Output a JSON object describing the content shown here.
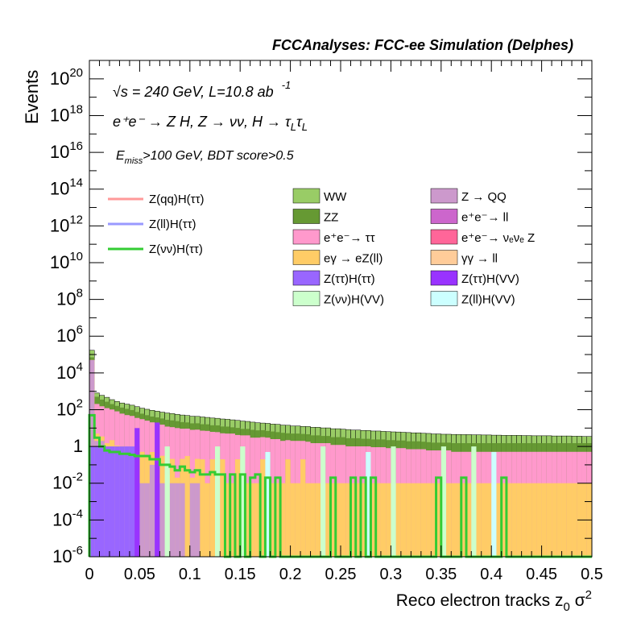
{
  "header": {
    "title": "FCCAnalyses: FCC-ee Simulation (Delphes)"
  },
  "chart_data": {
    "type": "bar",
    "stacked": true,
    "log_y": true,
    "xlabel": "Reco electron tracks z",
    "xlabel_sub": "0",
    "xlabel_tail": " σ",
    "xlabel_sup": "2",
    "ylabel": "Events",
    "xlim": [
      0,
      0.5
    ],
    "ylim": [
      1e-06,
      1e+21
    ],
    "x_ticks": [
      "0",
      "0.05",
      "0.1",
      "0.15",
      "0.2",
      "0.25",
      "0.3",
      "0.35",
      "0.4",
      "0.45",
      "0.5"
    ],
    "y_ticks": [
      {
        "base": "10",
        "exp": "20"
      },
      {
        "base": "10",
        "exp": "18"
      },
      {
        "base": "10",
        "exp": "16"
      },
      {
        "base": "10",
        "exp": "14"
      },
      {
        "base": "10",
        "exp": "12"
      },
      {
        "base": "10",
        "exp": "10"
      },
      {
        "base": "10",
        "exp": "8"
      },
      {
        "base": "10",
        "exp": "6"
      },
      {
        "base": "10",
        "exp": "4"
      },
      {
        "base": "10",
        "exp": "2"
      },
      {
        "base": "1",
        "exp": ""
      },
      {
        "base": "10",
        "exp": "-2"
      },
      {
        "base": "10",
        "exp": "-4"
      },
      {
        "base": "10",
        "exp": "-6"
      }
    ],
    "annotations": {
      "sqrt_s": "√s = 240 GeV, L=10.8 ab",
      "sqrt_s_sup": "-1",
      "process": "e⁺e⁻ → Z H, Z → νν, H → τ",
      "process_sub1": "L",
      "process_mid": "τ",
      "process_sub2": "L",
      "selection_main": "E",
      "selection_sub": "miss",
      "selection_tail": ">100 GeV, BDT score>0.5"
    },
    "legend_lines": [
      {
        "name": "Z(qq)H(ττ)",
        "color": "#ff9999"
      },
      {
        "name": "Z(ll)H(ττ)",
        "color": "#9999ff"
      },
      {
        "name": "Z(νν)H(ττ)",
        "color": "#33cc33"
      }
    ],
    "legend_boxes": [
      {
        "name": "WW",
        "color": "#99cc66"
      },
      {
        "name": "Z → QQ",
        "color": "#cc99cc"
      },
      {
        "name": "ZZ",
        "color": "#669933"
      },
      {
        "name": "e⁺e⁻→ ll",
        "color": "#cc66cc"
      },
      {
        "name": "e⁺e⁻→ ττ",
        "color": "#ff99cc"
      },
      {
        "name": "e⁺e⁻→ νₑνₑ Z",
        "color": "#ff6699"
      },
      {
        "name": "eγ → eZ(ll)",
        "color": "#ffcc66"
      },
      {
        "name": "γγ → ll",
        "color": "#ffcc99"
      },
      {
        "name": "Z(ττ)H(ττ)",
        "color": "#9966ff"
      },
      {
        "name": "Z(ττ)H(VV)",
        "color": "#9933ff"
      },
      {
        "name": "Z(νν)H(VV)",
        "color": "#ccffcc"
      },
      {
        "name": "Z(ll)H(VV)",
        "color": "#ccffff"
      }
    ],
    "bin_width": 0.005,
    "stack_order": [
      "Z → QQ",
      "eγ → eZ(ll)",
      "e⁺e⁻→ ττ",
      "ZZ",
      "WW"
    ],
    "stack": [
      {
        "name": "Z → QQ",
        "color": "#cc99cc",
        "values": [
          50000,
          2,
          2,
          0.5,
          1,
          0.3,
          0.02,
          0.3,
          0.01,
          0.2,
          0.01,
          0.01,
          0.1,
          0.01,
          0.01,
          0.01,
          0.01,
          0.01,
          0.01,
          0,
          0.01,
          0.01,
          0,
          0,
          0,
          0,
          0,
          0,
          0,
          0,
          0,
          0,
          0,
          0,
          0,
          0,
          0,
          0,
          0,
          0,
          0,
          0,
          0,
          0,
          0,
          0,
          0,
          0,
          0,
          0,
          0,
          0,
          0,
          0,
          0,
          0,
          0,
          0,
          0,
          0,
          0,
          0,
          0,
          0,
          0,
          0,
          0,
          0,
          0,
          0,
          0,
          0,
          0,
          0,
          0,
          0,
          0,
          0,
          0,
          0,
          0,
          0,
          0,
          0,
          0,
          0,
          0,
          0,
          0,
          0,
          0,
          0,
          0,
          0,
          0,
          0,
          0,
          0,
          0,
          0
        ]
      },
      {
        "name": "eγ → eZ(ll)",
        "color": "#ffcc66",
        "values": [
          2,
          3,
          1.5,
          1,
          1.2,
          0.8,
          1,
          0.5,
          0.6,
          0.4,
          0.5,
          0.3,
          0.4,
          0.01,
          0.3,
          0.02,
          0.2,
          0.01,
          0.2,
          0.3,
          0.01,
          0.2,
          0.2,
          0.01,
          0.2,
          0.01,
          0.2,
          0.01,
          0.01,
          0.2,
          0.01,
          0.01,
          0.01,
          0.01,
          0.2,
          0.01,
          0.01,
          0.01,
          0.01,
          0.2,
          0.01,
          0.01,
          0.2,
          0.01,
          0.01,
          0.01,
          0.01,
          0.01,
          0.01,
          0.01,
          0.01,
          0.01,
          0.01,
          0.01,
          0.01,
          0.01,
          0.01,
          0.01,
          0.01,
          0.01,
          0.01,
          0.01,
          0.01,
          0.01,
          0.01,
          0.01,
          0.01,
          0.01,
          0.01,
          0.01,
          0.01,
          0.01,
          0.01,
          0.01,
          0.01,
          0.01,
          0.01,
          0.01,
          0.01,
          0.01,
          0.01,
          0.01,
          0.01,
          0.01,
          0.01,
          0.01,
          0.01,
          0.01,
          0.01,
          0.01,
          0.01,
          0.01,
          0.01,
          0.01,
          0.01,
          0.01,
          0.01,
          0.01,
          0.01,
          0.01
        ]
      },
      {
        "name": "e⁺e⁻→ ττ",
        "color": "#ff99cc",
        "values": [
          300,
          200,
          150,
          120,
          100,
          80,
          60,
          50,
          45,
          35,
          30,
          25,
          20,
          18,
          15,
          12,
          11,
          10,
          9,
          9,
          8,
          8,
          7,
          7,
          6,
          6,
          5,
          5,
          5,
          4,
          4,
          4,
          3,
          3,
          3,
          3,
          2.5,
          2.5,
          2,
          2,
          2,
          2,
          1.8,
          1.8,
          1.5,
          1.5,
          1.5,
          1.5,
          1.2,
          1.2,
          1.2,
          1,
          1,
          1,
          1,
          1,
          0.9,
          0.9,
          0.9,
          0.8,
          0.8,
          0.8,
          0.8,
          0.7,
          0.7,
          0.7,
          0.7,
          0.6,
          0.6,
          0.6,
          0.6,
          0.6,
          0.5,
          0.5,
          0.5,
          0.5,
          0.5,
          0.5,
          0.5,
          0.5,
          0.5,
          0.5,
          0.5,
          0.5,
          0.5,
          0.5,
          0.5,
          0.5,
          0.5,
          0.5,
          0.5,
          0.5,
          0.5,
          0.5,
          0.5,
          0.5,
          0.5,
          0.5,
          0.5,
          0.5
        ]
      },
      {
        "name": "ZZ",
        "color": "#669933",
        "values": [
          20000,
          300,
          200,
          150,
          100,
          80,
          70,
          60,
          50,
          40,
          30,
          25,
          22,
          20,
          18,
          16,
          15,
          14,
          12,
          11,
          10,
          10,
          9,
          9,
          8,
          8,
          7,
          7,
          6,
          6,
          5,
          5,
          5,
          4.5,
          4.5,
          4,
          4,
          3.5,
          3.5,
          3,
          3,
          3,
          2.8,
          2.8,
          2.5,
          2.5,
          2.2,
          2.2,
          2,
          2,
          2,
          1.8,
          1.8,
          1.8,
          1.6,
          1.6,
          1.5,
          1.5,
          1.5,
          1.4,
          1.4,
          1.3,
          1.3,
          1.2,
          1.2,
          1.2,
          1.1,
          1.1,
          1,
          1,
          1,
          1,
          1,
          1,
          1,
          1,
          1,
          1,
          1,
          1,
          1,
          1,
          1,
          1,
          1,
          1,
          1,
          1,
          1,
          1,
          1,
          1,
          1,
          1,
          1,
          1,
          1,
          1,
          1,
          1
        ]
      },
      {
        "name": "WW",
        "color": "#99cc66",
        "values": [
          100000,
          300,
          250,
          200,
          150,
          120,
          100,
          90,
          80,
          70,
          60,
          55,
          50,
          45,
          40,
          38,
          35,
          32,
          30,
          28,
          26,
          25,
          24,
          22,
          21,
          20,
          19,
          18,
          17,
          16,
          15,
          14,
          13,
          12,
          11,
          11,
          10,
          10,
          9,
          9,
          8,
          8,
          7.5,
          7.5,
          7,
          7,
          6.5,
          6.5,
          6,
          6,
          5.5,
          5.5,
          5,
          5,
          4.8,
          4.8,
          4.5,
          4.5,
          4.2,
          4.2,
          4,
          4,
          3.8,
          3.8,
          3.6,
          3.6,
          3.4,
          3.4,
          3.2,
          3.2,
          3,
          3,
          3,
          3,
          2.9,
          2.9,
          2.8,
          2.8,
          2.7,
          2.7,
          2.6,
          2.6,
          2.5,
          2.5,
          2.5,
          2.5,
          2.4,
          2.4,
          2.3,
          2.3,
          2.3,
          2.3,
          2.2,
          2.2,
          2.2,
          2.2,
          2.1,
          2.1,
          2,
          2
        ]
      }
    ],
    "overlay": {
      "name": "Z(νν)H(ττ)",
      "color": "#33cc33",
      "values": [
        50,
        3,
        1,
        0.6,
        0.5,
        0.5,
        0.4,
        0.4,
        0.35,
        0.3,
        0.3,
        0.3,
        0.2,
        0.2,
        0.1,
        0.1,
        0.08,
        0.05,
        0.08,
        0.05,
        0.04,
        0.05,
        0.03,
        0.03,
        0.04,
        0.03,
        0.03,
        1e-06,
        0.03,
        1e-06,
        0.03,
        1e-06,
        0.02,
        0.03,
        1e-06,
        0.02,
        1e-06,
        0.02,
        1e-06,
        1e-06,
        1e-06,
        1e-06,
        1e-06,
        1e-06,
        1e-06,
        1e-06,
        1e-06,
        1e-06,
        0.02,
        1e-06,
        1e-06,
        1e-06,
        0.02,
        1e-06,
        0.02,
        1e-06,
        0.02,
        1e-06,
        1e-06,
        1e-06,
        1e-06,
        1e-06,
        1e-06,
        1e-06,
        1e-06,
        1e-06,
        1e-06,
        1e-06,
        1e-06,
        0.02,
        1e-06,
        1e-06,
        1e-06,
        1e-06,
        0.02,
        1e-06,
        1e-06,
        1e-06,
        1e-06,
        1e-06,
        1e-06,
        1e-06,
        0.02,
        1e-06,
        1e-06,
        1e-06,
        1e-06,
        1e-06,
        1e-06,
        1e-06,
        1e-06,
        1e-06,
        1e-06,
        1e-06,
        1e-06,
        1e-06,
        1e-06,
        1e-06,
        1e-06,
        1e-06
      ]
    },
    "small_components": [
      {
        "name": "Z(ττ)H(ττ)",
        "color": "#9966ff",
        "bins": [
          0,
          1,
          2,
          3,
          4,
          5,
          6,
          7,
          8,
          9
        ],
        "values": [
          0.001,
          0.001,
          0.001,
          0.001,
          0.001,
          0.001,
          0.001,
          0.001,
          0.001,
          0.001
        ]
      },
      {
        "name": "Z(ττ)H(VV)",
        "color": "#9933ff",
        "bins": [
          9,
          13
        ],
        "values": [
          0.01,
          0.02
        ]
      },
      {
        "name": "Z(νν)H(VV)",
        "color": "#ccffcc",
        "bins": [
          15,
          25,
          30,
          46,
          60,
          70,
          76
        ],
        "values": [
          0.001,
          0.001,
          0.001,
          0.001,
          0.001,
          0.001,
          0.001
        ]
      },
      {
        "name": "Z(ll)H(VV)",
        "color": "#ccffff",
        "bins": [
          35,
          55,
          80
        ],
        "values": [
          0.0005,
          0.0005,
          0.0005
        ]
      }
    ]
  }
}
